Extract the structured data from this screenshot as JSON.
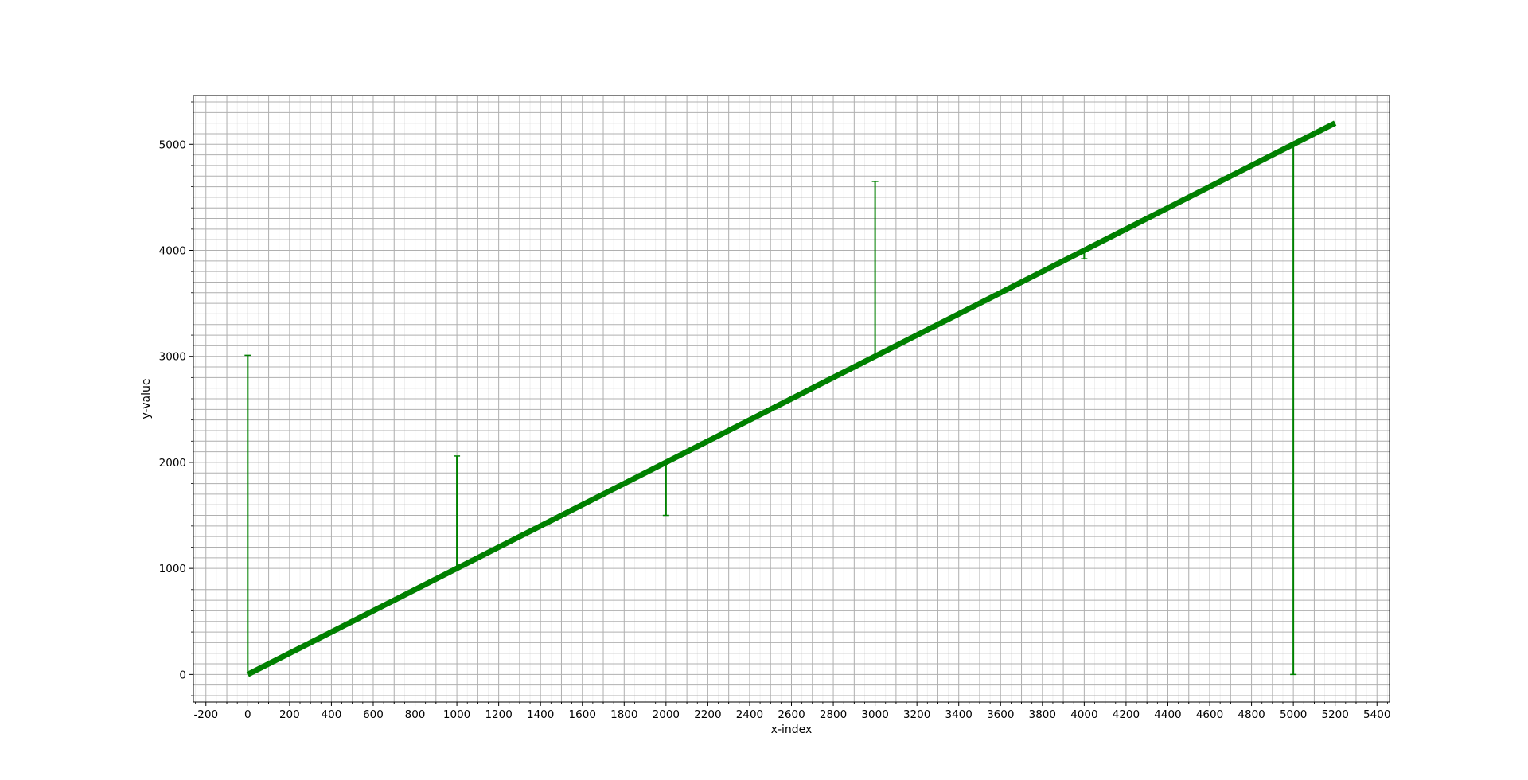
{
  "chart_data": {
    "type": "line",
    "title": "",
    "xlabel": "x-index",
    "ylabel": "y-value",
    "xlim": [
      -260,
      5460
    ],
    "ylim": [
      -260,
      5460
    ],
    "x_ticks": [
      -200,
      0,
      200,
      400,
      600,
      800,
      1000,
      1200,
      1400,
      1600,
      1800,
      2000,
      2200,
      2400,
      2600,
      2800,
      3000,
      3200,
      3400,
      3600,
      3800,
      4000,
      4200,
      4400,
      4600,
      4800,
      5000,
      5200,
      5400
    ],
    "y_ticks": [
      0,
      1000,
      2000,
      3000,
      4000,
      5000
    ],
    "grid": {
      "major": true,
      "minor": true
    },
    "series": [
      {
        "style": "thick-line",
        "color": "#008000",
        "x": [
          0,
          5200
        ],
        "y": [
          0,
          5200
        ]
      }
    ],
    "error_bars": [
      {
        "x": 0,
        "line_y": 0,
        "end_y": 3010
      },
      {
        "x": 1000,
        "line_y": 1000,
        "end_y": 2060
      },
      {
        "x": 2000,
        "line_y": 2000,
        "end_y": 1500
      },
      {
        "x": 3000,
        "line_y": 3000,
        "end_y": 4650
      },
      {
        "x": 4000,
        "line_y": 4000,
        "end_y": 3920
      },
      {
        "x": 5000,
        "line_y": 5000,
        "end_y": 0
      }
    ]
  }
}
